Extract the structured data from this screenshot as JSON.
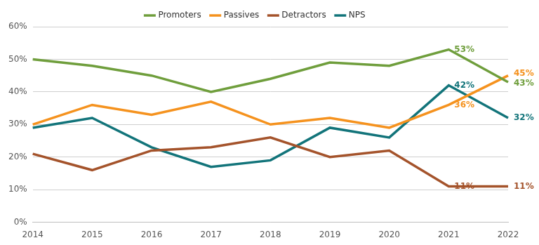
{
  "chart_data": {
    "type": "line",
    "categories": [
      "2014",
      "2015",
      "2016",
      "2017",
      "2018",
      "2019",
      "2020",
      "2021",
      "2022"
    ],
    "series": [
      {
        "name": "Promoters",
        "color": "#6f9e3c",
        "values": [
          50,
          48,
          45,
          40,
          44,
          49,
          48,
          53,
          43
        ],
        "value_labels": [
          null,
          null,
          null,
          null,
          null,
          null,
          null,
          "53%",
          "43%"
        ]
      },
      {
        "name": "Passives",
        "color": "#f5921e",
        "values": [
          30,
          36,
          33,
          37,
          30,
          32,
          29,
          36,
          45
        ],
        "value_labels": [
          null,
          null,
          null,
          null,
          null,
          null,
          null,
          "36%",
          "45%"
        ]
      },
      {
        "name": "Detractors",
        "color": "#a4532b",
        "values": [
          21,
          16,
          22,
          23,
          26,
          20,
          22,
          11,
          11
        ],
        "value_labels": [
          null,
          null,
          null,
          null,
          null,
          null,
          null,
          "11%",
          "11%"
        ]
      },
      {
        "name": "NPS",
        "color": "#12747a",
        "values": [
          29,
          32,
          23,
          17,
          19,
          29,
          26,
          42,
          32
        ],
        "value_labels": [
          null,
          null,
          null,
          null,
          null,
          null,
          null,
          "42%",
          "32%"
        ]
      }
    ],
    "ylim": [
      0,
      60
    ],
    "yticks": [
      {
        "value": 0,
        "label": "0%"
      },
      {
        "value": 10,
        "label": "10%"
      },
      {
        "value": 20,
        "label": "20%"
      },
      {
        "value": 30,
        "label": "30%"
      },
      {
        "value": 40,
        "label": "40%"
      },
      {
        "value": 50,
        "label": "50%"
      },
      {
        "value": 60,
        "label": "60%"
      }
    ],
    "grid": true,
    "legend": "top",
    "data_labels": true
  }
}
